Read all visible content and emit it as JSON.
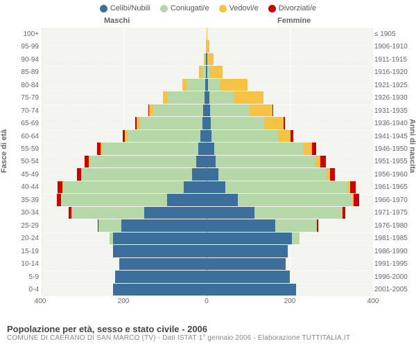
{
  "legend": [
    {
      "label": "Celibi/Nubili",
      "color": "#3c6f9c"
    },
    {
      "label": "Coniugati/e",
      "color": "#b6d7a8"
    },
    {
      "label": "Vedovi/e",
      "color": "#f6c244"
    },
    {
      "label": "Divorziati/e",
      "color": "#cc0000"
    }
  ],
  "columns": {
    "left": "Maschi",
    "right": "Femmine"
  },
  "y_axis_left_title": "Fasce di età",
  "y_axis_right_title": "Anni di nascita",
  "x_axis": {
    "max": 400,
    "ticks": [
      400,
      200,
      0,
      200,
      400
    ]
  },
  "plot_bg": "#f3f3f0",
  "rows": [
    {
      "age": "100+",
      "birth": "≤ 1905",
      "m": [
        0,
        0,
        0,
        0
      ],
      "f": [
        0,
        0,
        1,
        0
      ]
    },
    {
      "age": "95-99",
      "birth": "1906-1910",
      "m": [
        0,
        0,
        2,
        0
      ],
      "f": [
        0,
        0,
        6,
        0
      ]
    },
    {
      "age": "90-94",
      "birth": "1911-1915",
      "m": [
        1,
        2,
        4,
        0
      ],
      "f": [
        1,
        2,
        14,
        0
      ]
    },
    {
      "age": "85-89",
      "birth": "1916-1920",
      "m": [
        2,
        10,
        6,
        0
      ],
      "f": [
        2,
        6,
        30,
        0
      ]
    },
    {
      "age": "80-84",
      "birth": "1921-1925",
      "m": [
        4,
        45,
        10,
        0
      ],
      "f": [
        3,
        30,
        65,
        0
      ]
    },
    {
      "age": "75-79",
      "birth": "1926-1930",
      "m": [
        5,
        90,
        10,
        0
      ],
      "f": [
        6,
        60,
        70,
        0
      ]
    },
    {
      "age": "70-74",
      "birth": "1931-1935",
      "m": [
        8,
        120,
        10,
        2
      ],
      "f": [
        8,
        95,
        55,
        2
      ]
    },
    {
      "age": "65-69",
      "birth": "1936-1940",
      "m": [
        10,
        150,
        8,
        4
      ],
      "f": [
        10,
        130,
        45,
        4
      ]
    },
    {
      "age": "60-64",
      "birth": "1941-1945",
      "m": [
        15,
        175,
        6,
        6
      ],
      "f": [
        12,
        160,
        30,
        6
      ]
    },
    {
      "age": "55-59",
      "birth": "1946-1950",
      "m": [
        20,
        230,
        5,
        8
      ],
      "f": [
        18,
        215,
        20,
        10
      ]
    },
    {
      "age": "50-54",
      "birth": "1951-1955",
      "m": [
        25,
        255,
        3,
        10
      ],
      "f": [
        22,
        240,
        12,
        12
      ]
    },
    {
      "age": "45-49",
      "birth": "1956-1960",
      "m": [
        35,
        265,
        2,
        10
      ],
      "f": [
        28,
        260,
        8,
        12
      ]
    },
    {
      "age": "40-44",
      "birth": "1961-1965",
      "m": [
        55,
        290,
        1,
        12
      ],
      "f": [
        45,
        295,
        5,
        14
      ]
    },
    {
      "age": "35-39",
      "birth": "1966-1970",
      "m": [
        95,
        255,
        0,
        10
      ],
      "f": [
        75,
        275,
        3,
        14
      ]
    },
    {
      "age": "30-34",
      "birth": "1971-1975",
      "m": [
        150,
        175,
        0,
        6
      ],
      "f": [
        115,
        210,
        1,
        8
      ]
    },
    {
      "age": "25-29",
      "birth": "1976-1980",
      "m": [
        205,
        55,
        0,
        2
      ],
      "f": [
        165,
        100,
        0,
        4
      ]
    },
    {
      "age": "20-24",
      "birth": "1981-1985",
      "m": [
        225,
        8,
        0,
        0
      ],
      "f": [
        205,
        18,
        0,
        0
      ]
    },
    {
      "age": "15-19",
      "birth": "1986-1990",
      "m": [
        225,
        0,
        0,
        0
      ],
      "f": [
        195,
        0,
        0,
        0
      ]
    },
    {
      "age": "10-14",
      "birth": "1991-1995",
      "m": [
        210,
        0,
        0,
        0
      ],
      "f": [
        190,
        0,
        0,
        0
      ]
    },
    {
      "age": "5-9",
      "birth": "1996-2000",
      "m": [
        220,
        0,
        0,
        0
      ],
      "f": [
        200,
        0,
        0,
        0
      ]
    },
    {
      "age": "0-4",
      "birth": "2001-2005",
      "m": [
        225,
        0,
        0,
        0
      ],
      "f": [
        215,
        0,
        0,
        0
      ]
    }
  ],
  "footer": {
    "title": "Popolazione per età, sesso e stato civile - 2006",
    "sub": "COMUNE DI CAERANO DI SAN MARCO (TV) - Dati ISTAT 1° gennaio 2006 - Elaborazione TUTTITALIA.IT"
  }
}
